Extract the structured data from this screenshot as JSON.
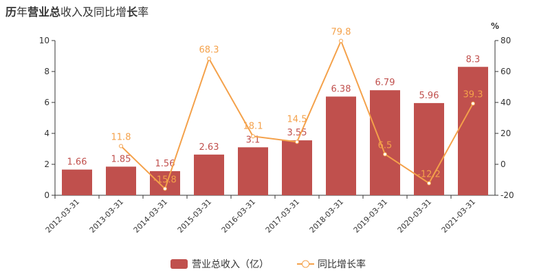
{
  "title_parts": [
    {
      "t": "历",
      "b": true
    },
    {
      "t": "年",
      "b": false
    },
    {
      "t": "营业总",
      "b": true
    },
    {
      "t": "收入及同比增",
      "b": false
    },
    {
      "t": "长",
      "b": true
    },
    {
      "t": "率",
      "b": false
    }
  ],
  "title": "历年营业总收入及同比增长率",
  "chart_data": {
    "type": "bar+line",
    "categories": [
      "2012-03-31",
      "2013-03-31",
      "2014-03-31",
      "2015-03-31",
      "2016-03-31",
      "2017-03-31",
      "2018-03-31",
      "2019-03-31",
      "2020-03-31",
      "2021-03-31"
    ],
    "series": [
      {
        "name": "营业总收入（亿）",
        "type": "bar",
        "axis": "left",
        "color": "#c0504d",
        "values": [
          1.66,
          1.85,
          1.56,
          2.63,
          3.1,
          3.55,
          6.38,
          6.79,
          5.96,
          8.3
        ]
      },
      {
        "name": "同比增长率",
        "type": "line",
        "axis": "right",
        "color": "#f4a14a",
        "values": [
          null,
          11.8,
          -15.8,
          68.3,
          18.1,
          14.5,
          79.8,
          6.5,
          -12.2,
          39.3
        ]
      }
    ],
    "y_left": {
      "range": [
        0,
        10
      ],
      "ticks": [
        0,
        2,
        4,
        6,
        8,
        10
      ]
    },
    "y_right": {
      "range": [
        -20,
        80
      ],
      "ticks": [
        -20,
        0,
        20,
        40,
        60,
        80
      ],
      "unit": "%"
    },
    "grid": false,
    "legend": "bottom"
  }
}
